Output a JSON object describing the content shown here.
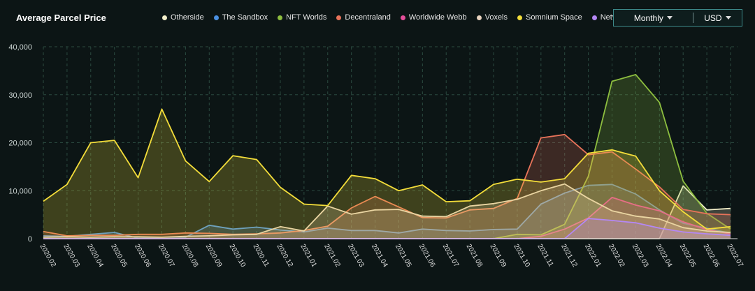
{
  "header": {
    "title": "Average Parcel Price",
    "period_label": "Monthly",
    "currency_label": "USD"
  },
  "chart_data": {
    "type": "area",
    "x": [
      "2020.02",
      "2020.03",
      "2020.04",
      "2020.05",
      "2020.06",
      "2020.07",
      "2020.08",
      "2020.09",
      "2020.10",
      "2020.11",
      "2020.12",
      "2021.01",
      "2021.02",
      "2021.03",
      "2021.04",
      "2021.05",
      "2021.06",
      "2021.07",
      "2021.08",
      "2021.09",
      "2021.10",
      "2021.11",
      "2021.12",
      "2022.01",
      "2022.02",
      "2022.03",
      "2022.04",
      "2022.05",
      "2022.06",
      "2022.07"
    ],
    "ylim": [
      0,
      40000
    ],
    "yticks": [
      0,
      10000,
      20000,
      30000,
      40000
    ],
    "ytick_labels": [
      "0",
      "10,000",
      "20,000",
      "30,000",
      "40,000"
    ],
    "grid": true,
    "legend_position": "top",
    "series": [
      {
        "name": "Otherside",
        "color": "#f3efc9",
        "values": [
          0,
          0,
          0,
          0,
          0,
          0,
          0,
          0,
          0,
          0,
          0,
          0,
          0,
          0,
          0,
          0,
          0,
          0,
          0,
          0,
          0,
          0,
          0,
          0,
          0,
          0,
          0,
          11000,
          6000,
          6300
        ]
      },
      {
        "name": "The Sandbox",
        "color": "#4a90e2",
        "values": [
          600,
          500,
          900,
          1300,
          100,
          300,
          300,
          2800,
          2000,
          2400,
          1800,
          1400,
          2200,
          1700,
          1700,
          1200,
          2000,
          1700,
          1600,
          1900,
          2000,
          7200,
          9500,
          11100,
          11300,
          9300,
          6000,
          3200,
          2200,
          1100
        ]
      },
      {
        "name": "NFT Worlds",
        "color": "#8dbe3f",
        "values": [
          0,
          0,
          0,
          0,
          0,
          0,
          0,
          0,
          0,
          0,
          0,
          0,
          0,
          0,
          0,
          0,
          0,
          0,
          0,
          0,
          900,
          800,
          3000,
          13000,
          32800,
          34200,
          28400,
          12000,
          5300,
          2000
        ]
      },
      {
        "name": "Decentraland",
        "color": "#e8735a",
        "values": [
          1500,
          600,
          700,
          700,
          900,
          900,
          1200,
          1100,
          900,
          1000,
          1200,
          1700,
          2600,
          6400,
          8800,
          6600,
          4400,
          4300,
          6000,
          6300,
          8400,
          21000,
          21700,
          17500,
          18100,
          14500,
          10800,
          6100,
          5200,
          5000
        ]
      },
      {
        "name": "Worldwide Webb",
        "color": "#e54f9b",
        "values": [
          0,
          0,
          0,
          0,
          0,
          0,
          0,
          0,
          0,
          0,
          0,
          0,
          0,
          0,
          0,
          0,
          0,
          0,
          0,
          0,
          0,
          500,
          2000,
          4300,
          8600,
          7000,
          5800,
          3500,
          1900,
          1000
        ]
      },
      {
        "name": "Voxels",
        "color": "#e8d3bf",
        "values": [
          300,
          400,
          300,
          400,
          400,
          300,
          500,
          600,
          800,
          900,
          2500,
          1600,
          6800,
          5100,
          6000,
          6100,
          4700,
          4600,
          6800,
          7300,
          8200,
          10000,
          11400,
          8400,
          5800,
          4700,
          4100,
          2300,
          1600,
          1300
        ]
      },
      {
        "name": "Somnium Space",
        "color": "#f3dd3a",
        "values": [
          7800,
          11300,
          20000,
          20500,
          12700,
          27000,
          16200,
          11900,
          17300,
          16500,
          10700,
          7200,
          6900,
          13200,
          12500,
          10000,
          11200,
          7700,
          7900,
          11300,
          12400,
          11800,
          12500,
          17800,
          18500,
          17200,
          10000,
          5600,
          2000,
          2500
        ]
      },
      {
        "name": "Netvrk",
        "color": "#b487f5",
        "values": [
          0,
          0,
          0,
          0,
          0,
          0,
          0,
          0,
          0,
          0,
          0,
          0,
          0,
          0,
          0,
          0,
          0,
          0,
          0,
          0,
          0,
          0,
          0,
          4200,
          3800,
          3300,
          2200,
          1400,
          1000,
          700
        ]
      }
    ]
  }
}
